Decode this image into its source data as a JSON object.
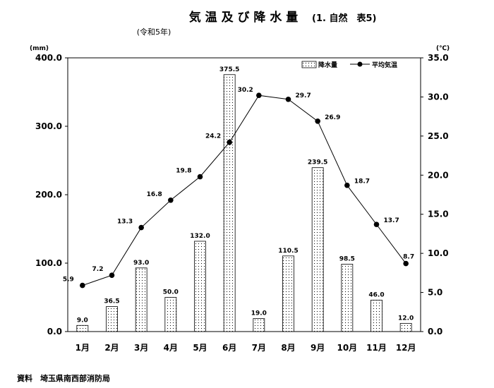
{
  "chart_data": {
    "type": "bar+line",
    "title": "気 温 及 び 降 水 量",
    "title_note": "(1. 自然　表5)",
    "subtitle": "(令和5年)",
    "y_left_unit": "(mm)",
    "y_right_unit": "(℃)",
    "y_left_lim": [
      0,
      400
    ],
    "y_right_lim": [
      0,
      35
    ],
    "y_left_ticks": [
      "0.0",
      "100.0",
      "200.0",
      "300.0",
      "400.0"
    ],
    "y_right_ticks": [
      "0.0",
      "5.0",
      "10.0",
      "15.0",
      "20.0",
      "25.0",
      "30.0",
      "35.0"
    ],
    "categories": [
      "1月",
      "2月",
      "3月",
      "4月",
      "5月",
      "6月",
      "7月",
      "8月",
      "9月",
      "10月",
      "11月",
      "12月"
    ],
    "series": [
      {
        "name": "降水量",
        "type": "bar",
        "axis": "left",
        "values": [
          9.0,
          36.5,
          93.0,
          50.0,
          132.0,
          375.5,
          19.0,
          110.5,
          239.5,
          98.5,
          46.0,
          12.0
        ],
        "labels": [
          "9.0",
          "36.5",
          "93.0",
          "50.0",
          "132.0",
          "375.5",
          "19.0",
          "110.5",
          "239.5",
          "98.5",
          "46.0",
          "12.0"
        ]
      },
      {
        "name": "平均気温",
        "type": "line",
        "axis": "right",
        "values": [
          5.9,
          7.2,
          13.3,
          16.8,
          19.8,
          24.2,
          30.2,
          29.7,
          26.9,
          18.7,
          13.7,
          8.7
        ],
        "labels": [
          "5.9",
          "7.2",
          "13.3",
          "16.8",
          "19.8",
          "24.2",
          "30.2",
          "29.7",
          "26.9",
          "18.7",
          "13.7",
          "8.7"
        ]
      }
    ],
    "source": "資料　埼玉県南西部消防局"
  }
}
